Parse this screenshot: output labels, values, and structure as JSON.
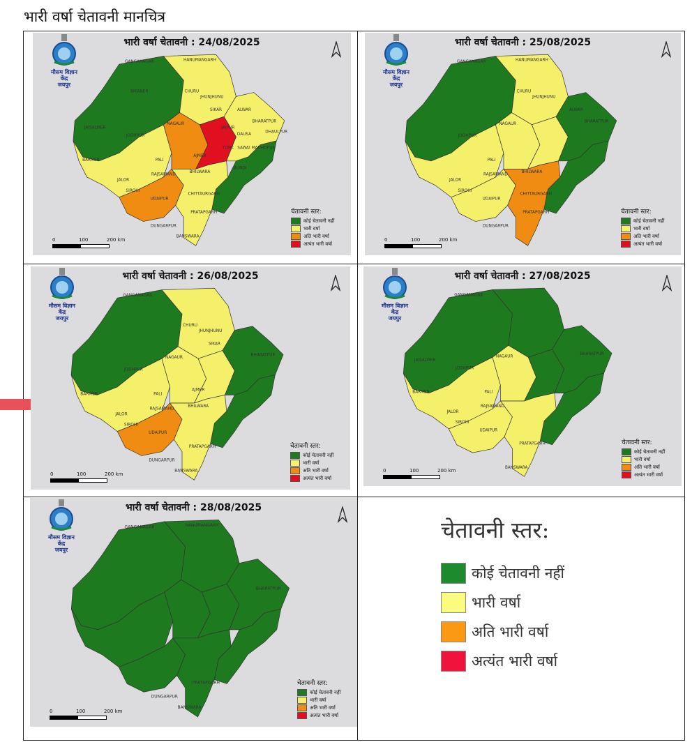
{
  "page_title": "भारी वर्षा चेतावनी मानचित्र",
  "emblem_text": [
    "मौसम विज्ञान",
    "केंद्र",
    "जयपुर"
  ],
  "legend_title": "चेतावनी स्तर:",
  "legend_items": [
    {
      "label": "कोई चेतावनी नहीं",
      "color": "#1e7a1e"
    },
    {
      "label": "भारी वर्षा",
      "color": "#f5f06a"
    },
    {
      "label": "अति भारी वर्षा",
      "color": "#f08c12"
    },
    {
      "label": "अत्यंत भारी वर्षा",
      "color": "#e01020"
    }
  ],
  "scale": {
    "n0": "0",
    "n100": "100",
    "n200": "200 km"
  },
  "panels": [
    {
      "title": "भारी वर्षा चेतावनी :  24/08/2025",
      "regions": {
        "nw": "green",
        "north": "yellow",
        "west": "yellow",
        "central": "orange",
        "sw": "orange",
        "core": "red",
        "east": "yellow",
        "se": "green",
        "south": "yellow"
      },
      "districts": [
        "GANGANAGAR",
        "HANUMANGARH",
        "BIKANER",
        "CHURU",
        "JHUNJHUNU",
        "SIKAR",
        "ALWAR",
        "BHARATPUR",
        "JAISALMER",
        "JODHPUR",
        "NAGAUR",
        "JAIPUR",
        "DAUSA",
        "DHAULPUR",
        "BARMER",
        "PALI",
        "AJMER",
        "TONK",
        "SAWAI MADHOPUR",
        "JALOR",
        "SIROHI",
        "RAJSAMAND",
        "BHILWARA",
        "BUNDI",
        "UDAIPUR",
        "CHITTAURGARH",
        "PRATAPGARH",
        "DUNGARPUR",
        "BANSWARA"
      ]
    },
    {
      "title": "भारी वर्षा चेतावनी :  25/08/2025",
      "regions": {
        "nw": "green",
        "north": "yellow",
        "west": "yellow",
        "central": "yellow",
        "sw": "yellow",
        "core": "yellow",
        "east": "green",
        "se": "green",
        "south": "orange"
      },
      "districts": [
        "GANGANAGAR",
        "HANUMANGARH",
        "CHURU",
        "JHUNJHUNU",
        "ALWAR",
        "BHARATPUR",
        "JODHPUR",
        "NAGAUR",
        "PALI",
        "JALOR",
        "SIROHI",
        "RAJSAMAND",
        "BHILWARA",
        "UDAIPUR",
        "CHITTAURGARH",
        "PRATAPGARH",
        "DUNGARPUR"
      ]
    },
    {
      "title": "भारी वर्षा चेतावनी : 26/08/2025",
      "regions": {
        "nw": "green",
        "north": "yellow",
        "west": "yellow",
        "central": "yellow",
        "sw": "orange",
        "core": "yellow",
        "east": "green",
        "se": "green",
        "south": "yellow"
      },
      "districts": [
        "GANGANAGAR",
        "CHURU",
        "JHUNJHUNU",
        "SIKAR",
        "BHARATPUR",
        "JODHPUR",
        "NAGAUR",
        "AJMER",
        "BARMER",
        "PALI",
        "JALOR",
        "SIROHI",
        "RAJSAMAND",
        "BHILWARA",
        "UDAIPUR",
        "PRATAPGARH",
        "DUNGARPUR",
        "BANSWARA"
      ]
    },
    {
      "title": "भारी वर्षा चेतावनी : 27/08/2025",
      "regions": {
        "nw": "green",
        "north": "green",
        "west": "yellow",
        "central": "yellow",
        "sw": "yellow",
        "core": "green",
        "east": "green",
        "se": "green",
        "south": "yellow"
      },
      "districts": [
        "GANGANAGAR",
        "JAISALMER",
        "JODHPUR",
        "NAGAUR",
        "BARMER",
        "PALI",
        "JALOR",
        "SIROHI",
        "RAJSAMAND",
        "UDAIPUR",
        "BHARATPUR",
        "PRATAPGARH",
        "BANSWARA"
      ]
    },
    {
      "title": "भारी वर्षा चेतावनी : 28/08/2025",
      "regions": {
        "nw": "green",
        "north": "green",
        "west": "green",
        "central": "green",
        "sw": "green",
        "core": "green",
        "east": "green",
        "se": "green",
        "south": "green"
      },
      "districts": [
        "GANGANAGAR",
        "HANUMANGARH",
        "BHARATPUR",
        "PRATAPGARH",
        "DUNGARPUR",
        "BANSWARA"
      ]
    }
  ]
}
